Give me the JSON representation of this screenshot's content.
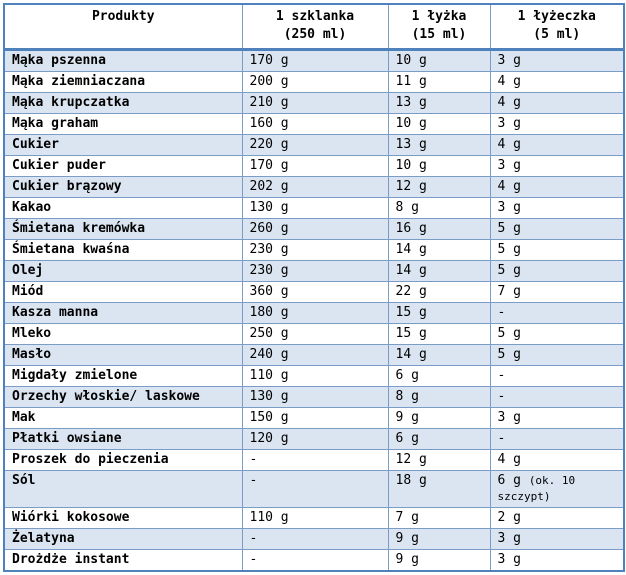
{
  "colors": {
    "border_thin": "#7a9cc6",
    "border_thick": "#4f81bd",
    "row_alt": "#dbe5f1",
    "text": "#000000"
  },
  "table": {
    "columns": [
      {
        "label": "Produkty",
        "sub": ""
      },
      {
        "label": "1 szklanka",
        "sub": "(250 ml)"
      },
      {
        "label": "1 łyżka",
        "sub": "(15 ml)"
      },
      {
        "label": "1 łyżeczka",
        "sub": "(5 ml)"
      }
    ],
    "rows": [
      {
        "product": "Mąka pszenna",
        "cup": "170 g",
        "tbsp": "10 g",
        "tsp": "3 g"
      },
      {
        "product": "Mąka ziemniaczana",
        "cup": "200 g",
        "tbsp": "11 g",
        "tsp": "4 g"
      },
      {
        "product": "Mąka krupczatka",
        "cup": "210 g",
        "tbsp": "13 g",
        "tsp": "4 g"
      },
      {
        "product": "Mąka graham",
        "cup": "160 g",
        "tbsp": "10 g",
        "tsp": "3 g"
      },
      {
        "product": "Cukier",
        "cup": "220 g",
        "tbsp": "13 g",
        "tsp": "4 g"
      },
      {
        "product": "Cukier puder",
        "cup": "170 g",
        "tbsp": "10 g",
        "tsp": "3 g"
      },
      {
        "product": "Cukier brązowy",
        "cup": "202 g",
        "tbsp": "12 g",
        "tsp": "4 g"
      },
      {
        "product": "Kakao",
        "cup": "130 g",
        "tbsp": "8 g",
        "tsp": "3 g"
      },
      {
        "product": "Śmietana kremówka",
        "cup": "260 g",
        "tbsp": "16 g",
        "tsp": "5 g"
      },
      {
        "product": "Śmietana kwaśna",
        "cup": "230 g",
        "tbsp": "14 g",
        "tsp": "5 g"
      },
      {
        "product": "Olej",
        "cup": "230 g",
        "tbsp": "14 g",
        "tsp": "5 g"
      },
      {
        "product": "Miód",
        "cup": "360 g",
        "tbsp": "22 g",
        "tsp": "7 g"
      },
      {
        "product": "Kasza manna",
        "cup": "180 g",
        "tbsp": "15 g",
        "tsp": "-"
      },
      {
        "product": "Mleko",
        "cup": "250 g",
        "tbsp": "15 g",
        "tsp": "5 g"
      },
      {
        "product": "Masło",
        "cup": "240 g",
        "tbsp": "14 g",
        "tsp": "5 g"
      },
      {
        "product": "Migdały zmielone",
        "cup": "110 g",
        "tbsp": "6 g",
        "tsp": "-"
      },
      {
        "product": "Orzechy włoskie/ laskowe",
        "cup": "130 g",
        "tbsp": "8 g",
        "tsp": "-"
      },
      {
        "product": "Mak",
        "cup": "150 g",
        "tbsp": "9 g",
        "tsp": "3 g"
      },
      {
        "product": "Płatki owsiane",
        "cup": "120 g",
        "tbsp": "6 g",
        "tsp": "-"
      },
      {
        "product": "Proszek do pieczenia",
        "cup": "-",
        "tbsp": "12 g",
        "tsp": "4 g"
      },
      {
        "product": "Sól",
        "cup": "-",
        "tbsp": "18 g",
        "tsp": "6 g",
        "tsp_note": "(ok. 10 szczypt)"
      },
      {
        "product": "Wiórki kokosowe",
        "cup": "110 g",
        "tbsp": "7 g",
        "tsp": "2 g"
      },
      {
        "product": "Żelatyna",
        "cup": "-",
        "tbsp": "9 g",
        "tsp": "3 g"
      },
      {
        "product": "Drożdże instant",
        "cup": "-",
        "tbsp": "9 g",
        "tsp": "3 g"
      }
    ]
  }
}
